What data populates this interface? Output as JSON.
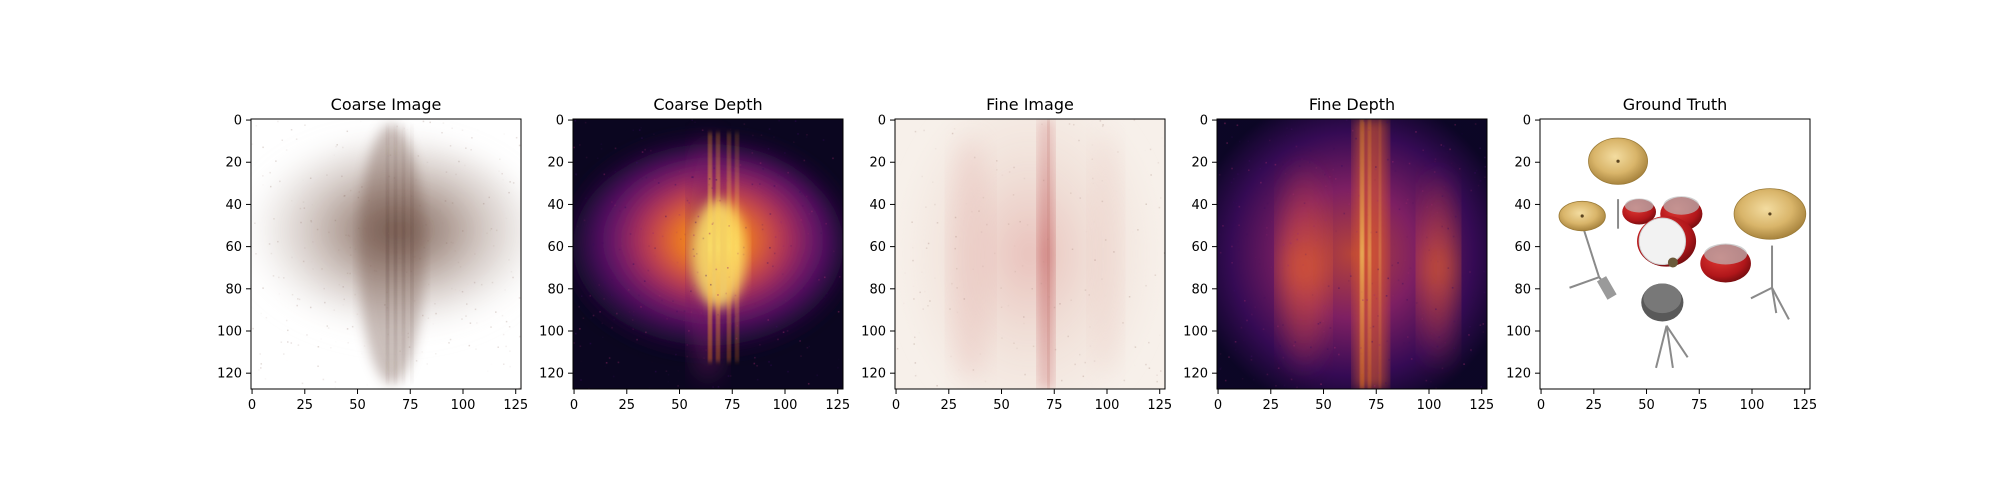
{
  "chart_data": [
    {
      "type": "heatmap",
      "title": "Coarse Image",
      "content": "render",
      "variant": "coarse",
      "x_ticks": [
        "0",
        "25",
        "50",
        "75",
        "100",
        "125"
      ],
      "y_ticks": [
        "0",
        "20",
        "40",
        "60",
        "80",
        "100",
        "120"
      ],
      "xlim": [
        0,
        127
      ],
      "ylim": [
        127,
        0
      ]
    },
    {
      "type": "heatmap",
      "title": "Coarse Depth",
      "content": "depth",
      "colormap": "inferno",
      "variant": "coarse",
      "x_ticks": [
        "0",
        "25",
        "50",
        "75",
        "100",
        "125"
      ],
      "y_ticks": [
        "0",
        "20",
        "40",
        "60",
        "80",
        "100",
        "120"
      ],
      "xlim": [
        0,
        127
      ],
      "ylim": [
        127,
        0
      ]
    },
    {
      "type": "heatmap",
      "title": "Fine Image",
      "content": "render",
      "variant": "fine",
      "x_ticks": [
        "0",
        "25",
        "50",
        "75",
        "100",
        "125"
      ],
      "y_ticks": [
        "0",
        "20",
        "40",
        "60",
        "80",
        "100",
        "120"
      ],
      "xlim": [
        0,
        127
      ],
      "ylim": [
        127,
        0
      ]
    },
    {
      "type": "heatmap",
      "title": "Fine Depth",
      "content": "depth",
      "colormap": "inferno",
      "variant": "fine",
      "x_ticks": [
        "0",
        "25",
        "50",
        "75",
        "100",
        "125"
      ],
      "y_ticks": [
        "0",
        "20",
        "40",
        "60",
        "80",
        "100",
        "120"
      ],
      "xlim": [
        0,
        127
      ],
      "ylim": [
        127,
        0
      ]
    },
    {
      "type": "heatmap",
      "title": "Ground Truth",
      "content": "ground-truth-drum-kit",
      "x_ticks": [
        "0",
        "25",
        "50",
        "75",
        "100",
        "125"
      ],
      "y_ticks": [
        "0",
        "20",
        "40",
        "60",
        "80",
        "100",
        "120"
      ],
      "xlim": [
        0,
        127
      ],
      "ylim": [
        127,
        0
      ]
    }
  ],
  "colors": {
    "inferno_dark": "#000004",
    "inferno_purple": "#420a68",
    "inferno_red": "#bc3754",
    "inferno_orange": "#f98e09",
    "inferno_yellow": "#fcffa4",
    "drum_red": "#c0161b",
    "cymbal_gold": "#d9b56a",
    "render_brown": "#6b4a3e",
    "render_pink": "#d98c8c"
  }
}
